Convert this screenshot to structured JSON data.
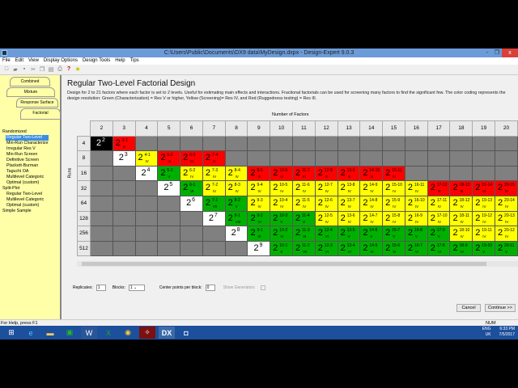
{
  "window": {
    "title": "C:\\Users\\Public\\Documents\\DX9 data\\MyDesign.dxpx - Design-Expert 9.0.3",
    "minimize": "-",
    "restore": "❐",
    "close": "x"
  },
  "menu": [
    "File",
    "Edit",
    "View",
    "Display Options",
    "Design Tools",
    "Help",
    "Tips"
  ],
  "toolbar_icons": [
    "new-icon",
    "open-icon",
    "save-icon",
    "cut-icon",
    "copy-icon",
    "paste-icon",
    "print-icon",
    "help-icon",
    "tip-icon"
  ],
  "tabs": [
    "Combined",
    "Mixture",
    "Response Surface",
    "Factorial"
  ],
  "tree": [
    {
      "label": "Randomized",
      "level": 0
    },
    {
      "label": "Regular Two-Level",
      "level": 1,
      "selected": true
    },
    {
      "label": "Min-Run Characterize",
      "level": 1
    },
    {
      "label": "Irregular Res V",
      "level": 1
    },
    {
      "label": "Min-Run Screen",
      "level": 1
    },
    {
      "label": "Definitive Screen",
      "level": 1
    },
    {
      "label": "Plackett-Burman",
      "level": 1
    },
    {
      "label": "Taguchi OA",
      "level": 1
    },
    {
      "label": "Multilevel Categoric",
      "level": 1
    },
    {
      "label": "Optimal (custom)",
      "level": 1
    },
    {
      "label": "Split-Plot",
      "level": 0
    },
    {
      "label": "Regular Two-Level",
      "level": 1
    },
    {
      "label": "Multilevel Categoric",
      "level": 1
    },
    {
      "label": "Optimal (custom)",
      "level": 1
    },
    {
      "label": "Simple Sample",
      "level": 0
    }
  ],
  "main": {
    "title": "Regular Two-Level Factorial Design",
    "description": "Design for 2 to 21 factors where each factor is set to 2 levels.  Useful for estimating main effects and interactions.  Fractional factorials can be used for screening many factors to find the significant few. The color coding represents the design resolution: Green (Characterization) = Res V or higher, Yellow (Screening)= Res IV, and Red (Ruggedness testing) = Res III.",
    "factors_label": "Number of Factors",
    "runs_label": "Runs"
  },
  "colors": {
    "III": "#ff0000",
    "IV": "#ffff00",
    "V+": "#00b000",
    "full": "#ffffff",
    "empty": "#808080",
    "full_first": "#000000"
  },
  "grid": {
    "factors": [
      "2",
      "3",
      "4",
      "5",
      "6",
      "7",
      "8",
      "9",
      "10",
      "11",
      "12",
      "13",
      "14",
      "15",
      "16",
      "17",
      "18",
      "19",
      "20"
    ],
    "runs": [
      "4",
      "8",
      "16",
      "32",
      "64",
      "128",
      "256",
      "512"
    ],
    "cells": [
      [
        {
          "e": "2",
          "r": "full"
        },
        {
          "e": "3-1",
          "r": "III"
        },
        null,
        null,
        null,
        null,
        null,
        null,
        null,
        null,
        null,
        null,
        null,
        null,
        null,
        null,
        null,
        null,
        null
      ],
      [
        null,
        {
          "e": "3",
          "r": "full"
        },
        {
          "e": "4-1",
          "r": "IV"
        },
        {
          "e": "5-2",
          "r": "III"
        },
        {
          "e": "6-3",
          "r": "III"
        },
        {
          "e": "7-4",
          "r": "III"
        },
        null,
        null,
        null,
        null,
        null,
        null,
        null,
        null,
        null,
        null,
        null,
        null,
        null
      ],
      [
        null,
        null,
        {
          "e": "4",
          "r": "full"
        },
        {
          "e": "5-1",
          "r": "V"
        },
        {
          "e": "6-2",
          "r": "IV"
        },
        {
          "e": "7-3",
          "r": "IV"
        },
        {
          "e": "8-4",
          "r": "IV"
        },
        {
          "e": "9-5",
          "r": "III"
        },
        {
          "e": "10-6",
          "r": "III"
        },
        {
          "e": "11-7",
          "r": "III"
        },
        {
          "e": "12-8",
          "r": "III"
        },
        {
          "e": "13-9",
          "r": "III"
        },
        {
          "e": "14-10",
          "r": "III"
        },
        {
          "e": "15-11",
          "r": "III"
        },
        null,
        null,
        null,
        null,
        null
      ],
      [
        null,
        null,
        null,
        {
          "e": "5",
          "r": "full"
        },
        {
          "e": "6-1",
          "r": "VI"
        },
        {
          "e": "7-2",
          "r": "IV"
        },
        {
          "e": "8-3",
          "r": "IV"
        },
        {
          "e": "9-4",
          "r": "IV"
        },
        {
          "e": "10-5",
          "r": "IV"
        },
        {
          "e": "11-6",
          "r": "IV"
        },
        {
          "e": "12-7",
          "r": "IV"
        },
        {
          "e": "13-8",
          "r": "IV"
        },
        {
          "e": "14-9",
          "r": "IV"
        },
        {
          "e": "15-10",
          "r": "IV"
        },
        {
          "e": "16-11",
          "r": "IV"
        },
        {
          "e": "17-12",
          "r": "III"
        },
        {
          "e": "18-13",
          "r": "III"
        },
        {
          "e": "19-14",
          "r": "III"
        },
        {
          "e": "20-15",
          "r": "III"
        }
      ],
      [
        null,
        null,
        null,
        null,
        {
          "e": "6",
          "r": "full"
        },
        {
          "e": "7-1",
          "r": "VII"
        },
        {
          "e": "8-2",
          "r": "V"
        },
        {
          "e": "9-3",
          "r": "IV"
        },
        {
          "e": "10-4",
          "r": "IV"
        },
        {
          "e": "11-5",
          "r": "IV"
        },
        {
          "e": "12-6",
          "r": "IV"
        },
        {
          "e": "13-7",
          "r": "IV"
        },
        {
          "e": "14-8",
          "r": "IV"
        },
        {
          "e": "15-9",
          "r": "IV"
        },
        {
          "e": "16-10",
          "r": "IV"
        },
        {
          "e": "17-11",
          "r": "IV"
        },
        {
          "e": "18-12",
          "r": "IV"
        },
        {
          "e": "19-13",
          "r": "IV"
        },
        {
          "e": "20-14",
          "r": "IV"
        }
      ],
      [
        null,
        null,
        null,
        null,
        null,
        {
          "e": "7",
          "r": "full"
        },
        {
          "e": "8-1",
          "r": "VIII"
        },
        {
          "e": "9-2",
          "r": "VI"
        },
        {
          "e": "10-3",
          "r": "V"
        },
        {
          "e": "11-4",
          "r": "V"
        },
        {
          "e": "12-5",
          "r": "IV"
        },
        {
          "e": "13-6",
          "r": "IV"
        },
        {
          "e": "14-7",
          "r": "IV"
        },
        {
          "e": "15-8",
          "r": "IV"
        },
        {
          "e": "16-9",
          "r": "IV"
        },
        {
          "e": "17-10",
          "r": "IV"
        },
        {
          "e": "18-11",
          "r": "IV"
        },
        {
          "e": "19-12",
          "r": "IV"
        },
        {
          "e": "20-13",
          "r": "IV"
        }
      ],
      [
        null,
        null,
        null,
        null,
        null,
        null,
        {
          "e": "8",
          "r": "full"
        },
        {
          "e": "9-1",
          "r": "IX"
        },
        {
          "e": "10-2",
          "r": "VI"
        },
        {
          "e": "11-3",
          "r": "VI"
        },
        {
          "e": "12-4",
          "r": "VI"
        },
        {
          "e": "13-5",
          "r": "V"
        },
        {
          "e": "14-6",
          "r": "V"
        },
        {
          "e": "15-7",
          "r": "V"
        },
        {
          "e": "16-8",
          "r": "V"
        },
        {
          "e": "17-9",
          "r": "V"
        },
        {
          "e": "18-10",
          "r": "IV"
        },
        {
          "e": "19-11",
          "r": "IV"
        },
        {
          "e": "20-12",
          "r": "IV"
        }
      ],
      [
        null,
        null,
        null,
        null,
        null,
        null,
        null,
        {
          "e": "9",
          "r": "full"
        },
        {
          "e": "10-1",
          "r": "X"
        },
        {
          "e": "11-2",
          "r": "VII"
        },
        {
          "e": "12-3",
          "r": "VI"
        },
        {
          "e": "13-4",
          "r": "VI"
        },
        {
          "e": "14-5",
          "r": "VI"
        },
        {
          "e": "15-6",
          "r": "VI"
        },
        {
          "e": "16-7",
          "r": "VI"
        },
        {
          "e": "17-8",
          "r": "VI"
        },
        {
          "e": "18-9",
          "r": "VI"
        },
        {
          "e": "19-10",
          "r": "V"
        },
        {
          "e": "20-11",
          "r": "V"
        }
      ]
    ]
  },
  "controls": {
    "replicates_label": "Replicates:",
    "replicates": "1",
    "blocks_label": "Blocks:",
    "blocks": "1",
    "center_label": "Center points per block:",
    "center": "0",
    "generators_label": "Show Generators",
    "generators_checked": false
  },
  "buttons": {
    "cancel": "Cancel",
    "continue": "Continue >>"
  },
  "status": {
    "help": "For Help, press F1",
    "num": "NUM"
  },
  "taskbar": {
    "apps": [
      "start-icon",
      "ie-icon",
      "explorer-icon",
      "store-icon",
      "word-icon",
      "excel-icon",
      "chrome-icon",
      "acrobat-icon",
      "design-expert-icon",
      "webcam-icon"
    ],
    "lang": "ENG",
    "region": "UK",
    "time": "6:33 PM",
    "date": "7/5/2017"
  }
}
